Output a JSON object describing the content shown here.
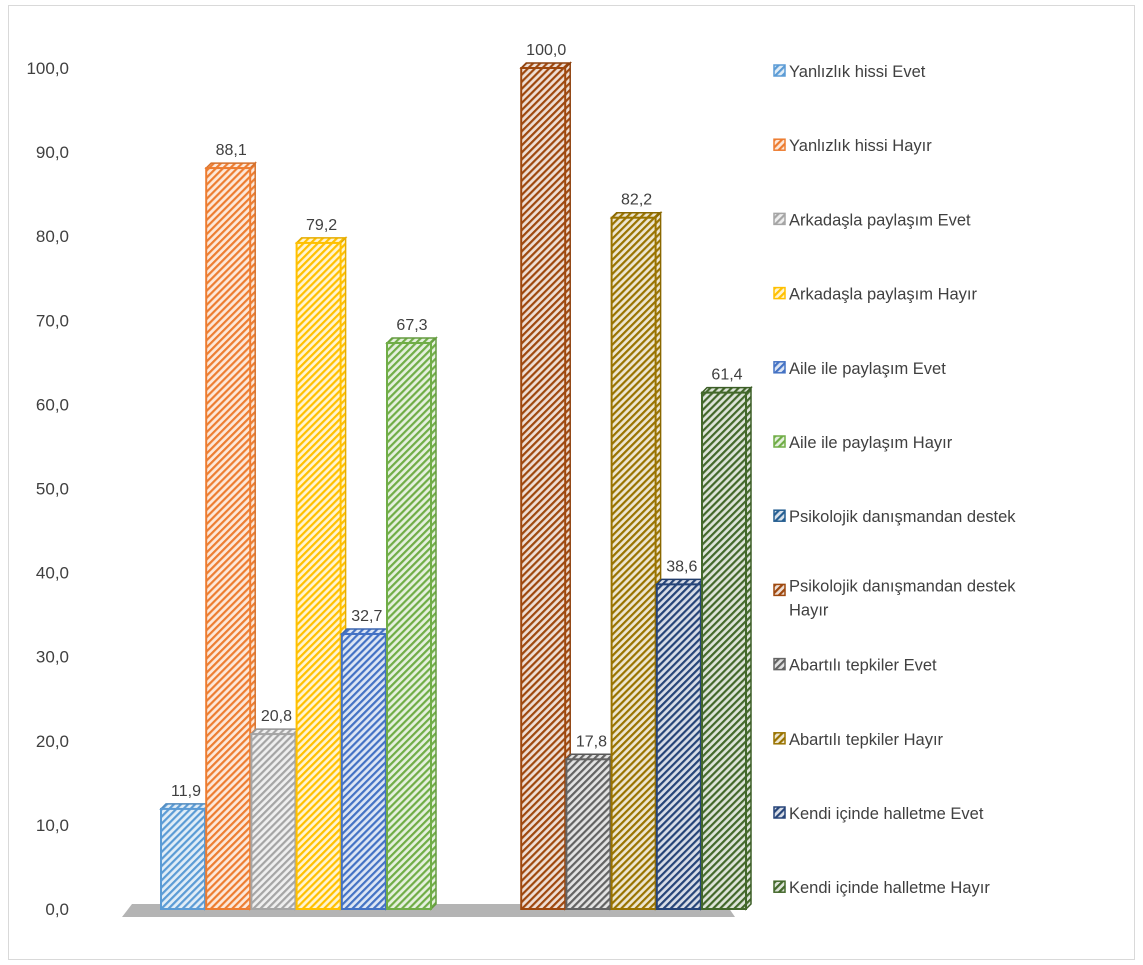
{
  "chart_data": {
    "type": "bar",
    "title": "",
    "xlabel": "",
    "ylabel": "",
    "ylim": [
      0,
      100
    ],
    "y_ticks": [
      "0,0",
      "10,0",
      "20,0",
      "30,0",
      "40,0",
      "50,0",
      "60,0",
      "70,0",
      "80,0",
      "90,0",
      "100,0"
    ],
    "grid": false,
    "legend_position": "right",
    "style": "3d-clustered-hatched",
    "groups": 2,
    "series": [
      {
        "name": "Yanlızlık hissi Evet",
        "color": "#5B9BD5",
        "values": [
          11.9,
          null
        ],
        "labels": [
          "11,9",
          ""
        ]
      },
      {
        "name": "Yanlızlık hissi Hayır",
        "color": "#ED7D31",
        "values": [
          88.1,
          null
        ],
        "labels": [
          "88,1",
          ""
        ]
      },
      {
        "name": "Arkadaşla paylaşım Evet",
        "color": "#A5A5A5",
        "values": [
          20.8,
          null
        ],
        "labels": [
          "20,8",
          ""
        ]
      },
      {
        "name": "Arkadaşla paylaşım Hayır",
        "color": "#FFC000",
        "values": [
          79.2,
          null
        ],
        "labels": [
          "79,2",
          ""
        ]
      },
      {
        "name": "Aile ile paylaşım Evet",
        "color": "#4472C4",
        "values": [
          32.7,
          null
        ],
        "labels": [
          "32,7",
          ""
        ]
      },
      {
        "name": "Aile ile paylaşım Hayır",
        "color": "#70AD47",
        "values": [
          67.3,
          null
        ],
        "labels": [
          "67,3",
          ""
        ]
      },
      {
        "name": "Psikolojik danışmandan destek",
        "color": "#255E91",
        "values": [
          null,
          0
        ],
        "labels": [
          "",
          ""
        ]
      },
      {
        "name": "Psikolojik danışmandan destek Hayır",
        "color": "#9E480E",
        "values": [
          null,
          100.0
        ],
        "labels": [
          "",
          "100,0"
        ]
      },
      {
        "name": "Abartılı tepkiler Evet",
        "color": "#636363",
        "values": [
          null,
          17.8
        ],
        "labels": [
          "",
          "17,8"
        ]
      },
      {
        "name": "Abartılı tepkiler Hayır",
        "color": "#997300",
        "values": [
          null,
          82.2
        ],
        "labels": [
          "",
          "82,2"
        ]
      },
      {
        "name": "Kendi içinde halletme Evet",
        "color": "#264478",
        "values": [
          null,
          38.6
        ],
        "labels": [
          "",
          "38,6"
        ]
      },
      {
        "name": "Kendi içinde halletme Hayır",
        "color": "#43682B",
        "values": [
          null,
          61.4
        ],
        "labels": [
          "",
          "61,4"
        ]
      }
    ]
  }
}
